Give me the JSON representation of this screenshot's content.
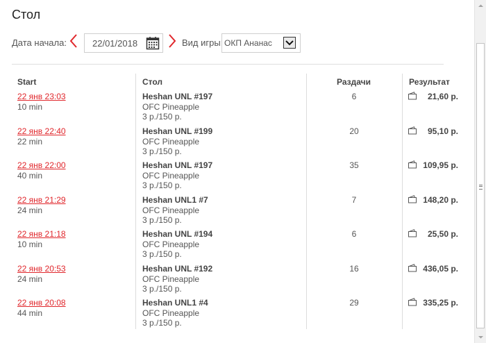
{
  "page": {
    "title": "Стол"
  },
  "filters": {
    "start_date_label": "Дата начала:",
    "start_date_value": "22/01/2018",
    "game_type_label": "Вид игры:",
    "game_type_value": "ОКП Ананас",
    "prev_icon": "chevron-left-icon",
    "next_icon": "chevron-right-icon",
    "calendar_icon": "calendar-icon"
  },
  "table": {
    "headers": {
      "start": "Start",
      "table": "Стол",
      "hands": "Раздачи",
      "result": "Результат"
    },
    "rows": [
      {
        "start": "22 янв 23:03",
        "duration": "10 min",
        "table_name": "Heshan UNL #197",
        "game": "OFC Pineapple",
        "stakes": "3 р./150 р.",
        "hands": "6",
        "result": "21,60 р."
      },
      {
        "start": "22 янв 22:40",
        "duration": "22 min",
        "table_name": "Heshan UNL #199",
        "game": "OFC Pineapple",
        "stakes": "3 р./150 р.",
        "hands": "20",
        "result": "95,10 р."
      },
      {
        "start": "22 янв 22:00",
        "duration": "40 min",
        "table_name": "Heshan UNL #197",
        "game": "OFC Pineapple",
        "stakes": "3 р./150 р.",
        "hands": "35",
        "result": "109,95 р."
      },
      {
        "start": "22 янв 21:29",
        "duration": "24 min",
        "table_name": "Heshan UNL1 #7",
        "game": "OFC Pineapple",
        "stakes": "3 р./150 р.",
        "hands": "7",
        "result": "148,20 р."
      },
      {
        "start": "22 янв 21:18",
        "duration": "10 min",
        "table_name": "Heshan UNL #194",
        "game": "OFC Pineapple",
        "stakes": "3 р./150 р.",
        "hands": "6",
        "result": "25,50 р."
      },
      {
        "start": "22 янв 20:53",
        "duration": "24 min",
        "table_name": "Heshan UNL #192",
        "game": "OFC Pineapple",
        "stakes": "3 р./150 р.",
        "hands": "16",
        "result": "436,05 р."
      },
      {
        "start": "22 янв 20:08",
        "duration": "44 min",
        "table_name": "Heshan UNL1 #4",
        "game": "OFC Pineapple",
        "stakes": "3 р./150 р.",
        "hands": "29",
        "result": "335,25 р."
      }
    ]
  },
  "colors": {
    "accent": "#e0262b",
    "text": "#444444",
    "divider": "#dcdcdc"
  }
}
